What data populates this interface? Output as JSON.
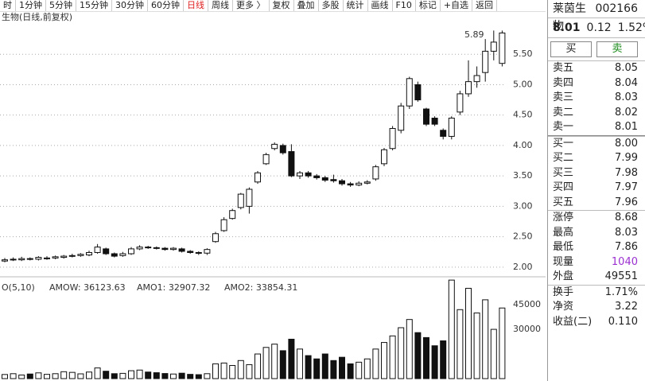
{
  "toolbar": [
    "时",
    "1分钟",
    "5分钟",
    "15分钟",
    "30分钟",
    "60分钟",
    "日线",
    "周线",
    "更多 〉",
    "复权",
    "叠加",
    "多股",
    "统计",
    "画线",
    "F10",
    "标记",
    "+自选",
    "返回"
  ],
  "chart_data": [
    {
      "type": "candlestick",
      "title": "生物(日线,前复权)",
      "annotations": [
        "5.89"
      ],
      "open": [
        2.1,
        2.12,
        2.12,
        2.14,
        2.13,
        2.15,
        2.15,
        2.16,
        2.18,
        2.19,
        2.2,
        2.24,
        2.3,
        2.22,
        2.19,
        2.22,
        2.3,
        2.33,
        2.32,
        2.31,
        2.29,
        2.3,
        2.26,
        2.24,
        2.23,
        2.42,
        2.6,
        2.8,
        2.98,
        3.0,
        3.4,
        3.7,
        3.95,
        4.0,
        3.9,
        3.5,
        3.55,
        3.5,
        3.47,
        3.44,
        3.42,
        3.37,
        3.35,
        3.38,
        3.45,
        3.7,
        3.95,
        4.25,
        4.65,
        5.0,
        4.6,
        4.45,
        4.25,
        4.15,
        4.55,
        4.85,
        5.05,
        5.2,
        5.55,
        5.35
      ],
      "high": [
        2.15,
        2.16,
        2.17,
        2.16,
        2.18,
        2.18,
        2.19,
        2.2,
        2.22,
        2.23,
        2.27,
        2.38,
        2.32,
        2.24,
        2.25,
        2.33,
        2.36,
        2.35,
        2.34,
        2.33,
        2.33,
        2.32,
        2.28,
        2.26,
        2.31,
        2.58,
        2.82,
        2.96,
        3.22,
        3.31,
        3.58,
        3.88,
        4.05,
        4.03,
        4.02,
        3.58,
        3.58,
        3.53,
        3.5,
        3.52,
        3.45,
        3.4,
        3.41,
        3.43,
        3.68,
        3.96,
        4.32,
        4.7,
        5.13,
        5.05,
        4.62,
        4.48,
        4.28,
        4.48,
        4.9,
        5.4,
        5.3,
        5.75,
        5.89,
        5.89
      ],
      "low": [
        2.08,
        2.1,
        2.1,
        2.11,
        2.11,
        2.12,
        2.13,
        2.14,
        2.16,
        2.17,
        2.18,
        2.22,
        2.2,
        2.16,
        2.17,
        2.2,
        2.28,
        2.3,
        2.29,
        2.27,
        2.27,
        2.24,
        2.22,
        2.2,
        2.2,
        2.4,
        2.58,
        2.78,
        2.95,
        2.88,
        3.37,
        3.68,
        3.92,
        3.85,
        3.48,
        3.45,
        3.47,
        3.44,
        3.4,
        3.39,
        3.34,
        3.32,
        3.33,
        3.36,
        3.42,
        3.66,
        3.92,
        4.2,
        4.6,
        4.72,
        4.32,
        4.32,
        4.1,
        4.1,
        4.5,
        4.8,
        4.95,
        5.05,
        5.4,
        5.3
      ],
      "close": [
        2.12,
        2.13,
        2.14,
        2.13,
        2.16,
        2.15,
        2.17,
        2.18,
        2.19,
        2.21,
        2.24,
        2.33,
        2.22,
        2.18,
        2.22,
        2.3,
        2.33,
        2.32,
        2.31,
        2.29,
        2.31,
        2.26,
        2.24,
        2.23,
        2.29,
        2.55,
        2.78,
        2.93,
        3.2,
        3.28,
        3.55,
        3.85,
        4.02,
        3.88,
        3.5,
        3.55,
        3.5,
        3.47,
        3.43,
        3.42,
        3.37,
        3.35,
        3.38,
        3.4,
        3.65,
        3.93,
        4.28,
        4.65,
        5.1,
        4.75,
        4.35,
        4.35,
        4.15,
        4.45,
        4.85,
        5.05,
        5.15,
        5.55,
        5.7,
        5.85
      ],
      "ylim": [
        1.88,
        6.0
      ],
      "yticks": [
        {
          "value": 2,
          "label": "2.00"
        },
        {
          "value": 2.5,
          "label": "2.50"
        },
        {
          "value": 3,
          "label": "3.00"
        },
        {
          "value": 3.5,
          "label": "3.50"
        },
        {
          "value": 4,
          "label": "4.00"
        },
        {
          "value": 4.5,
          "label": "4.50"
        },
        {
          "value": 5,
          "label": "5.00"
        },
        {
          "value": 5.5,
          "label": "5.50"
        }
      ],
      "grid": true
    },
    {
      "type": "volume",
      "title": "O(5,10)",
      "indicators": [
        "AMOW: 36123.63",
        "AMO1: 32907.32",
        "AMO2: 33854.31"
      ],
      "values": [
        2500,
        3000,
        2200,
        2800,
        3500,
        2600,
        3000,
        4200,
        3800,
        2900,
        4000,
        6500,
        4500,
        3000,
        3200,
        4800,
        5200,
        4000,
        3600,
        3100,
        2800,
        3300,
        2600,
        2400,
        3000,
        9000,
        9500,
        8000,
        11000,
        8500,
        15000,
        19000,
        21000,
        17000,
        24000,
        18000,
        14000,
        12000,
        15000,
        11000,
        13000,
        9000,
        10000,
        12000,
        18000,
        22000,
        26000,
        31000,
        36000,
        28000,
        25000,
        20000,
        23000,
        60000,
        42000,
        55000,
        40000,
        48000,
        30000,
        43000
      ],
      "ylim": [
        0,
        62000
      ],
      "yticks": [
        30000,
        45000
      ]
    }
  ],
  "quote": {
    "name": "莱茵生物",
    "code": "002166",
    "price": "8.01",
    "change": "0.12",
    "pct": "1.52%",
    "buy": "买",
    "sell": "卖",
    "asks": [
      [
        "卖五",
        "8.05"
      ],
      [
        "卖四",
        "8.04"
      ],
      [
        "卖三",
        "8.03"
      ],
      [
        "卖二",
        "8.02"
      ],
      [
        "卖一",
        "8.01"
      ]
    ],
    "bids": [
      [
        "买一",
        "8.00"
      ],
      [
        "买二",
        "7.99"
      ],
      [
        "买三",
        "7.98"
      ],
      [
        "买四",
        "7.97"
      ],
      [
        "买五",
        "7.96"
      ]
    ],
    "stats": [
      [
        "涨停",
        "8.68"
      ],
      [
        "最高",
        "8.03"
      ],
      [
        "最低",
        "7.86"
      ],
      [
        "现量",
        "1040"
      ],
      [
        "外盘",
        "49551"
      ]
    ],
    "extra": [
      [
        "换手",
        "1.71%"
      ],
      [
        "净资",
        "3.22"
      ],
      [
        "收益(二)",
        "0.110"
      ]
    ]
  }
}
